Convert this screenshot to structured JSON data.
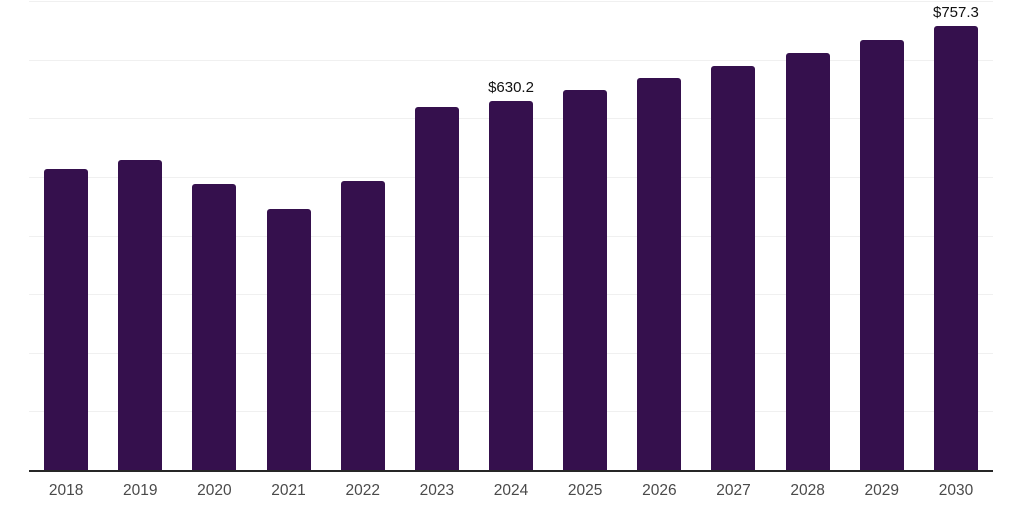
{
  "chart_data": {
    "type": "bar",
    "title": "",
    "xlabel": "",
    "ylabel": "",
    "categories": [
      "2018",
      "2019",
      "2020",
      "2021",
      "2022",
      "2023",
      "2024",
      "2025",
      "2026",
      "2027",
      "2028",
      "2029",
      "2030"
    ],
    "values": [
      512.7,
      529.2,
      488.3,
      445.7,
      493.4,
      619.5,
      630.2,
      648.9,
      668.2,
      689.8,
      712.0,
      733.6,
      757.3
    ],
    "data_labels": [
      "",
      "",
      "",
      "",
      "",
      "",
      "$630.2",
      "",
      "",
      "",
      "",
      "",
      "$757.3"
    ],
    "ylim": [
      0,
      800
    ],
    "gridline_step": 100,
    "grid": true,
    "legend": "none",
    "colors": {
      "bar": "#35104D",
      "gridline": "#F0F0F0",
      "axis_line": "#262626",
      "tick_label": "#4A4A4A",
      "data_label": "#111111",
      "background": "#FFFFFF"
    }
  }
}
